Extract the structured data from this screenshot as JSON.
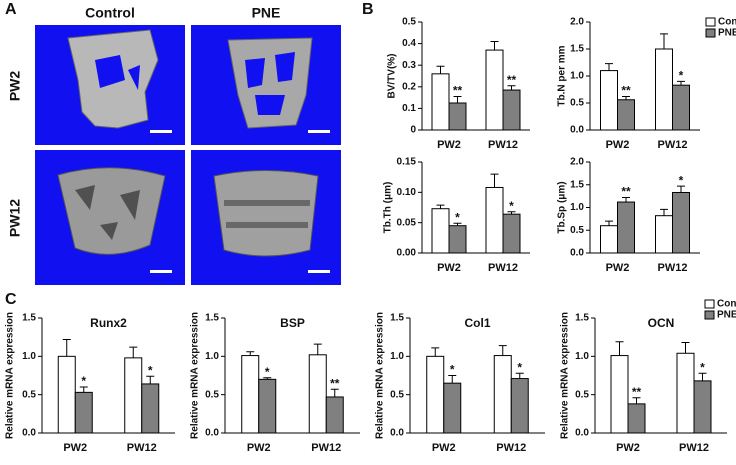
{
  "panel_labels": [
    "A",
    "B",
    "C"
  ],
  "panel_a": {
    "columns": [
      "Control",
      "PNE"
    ],
    "rows": [
      "PW2",
      "PW12"
    ]
  },
  "chart_data": [
    {
      "type": "bar",
      "ylabel": "BV/TV(%)",
      "categories": [
        "PW2",
        "PW12"
      ],
      "ylim": [
        0,
        0.5
      ],
      "yticks": [
        0,
        0.1,
        0.2,
        0.3,
        0.4,
        0.5
      ],
      "series": [
        {
          "color": "#ffffff",
          "values": [
            0.26,
            0.37
          ],
          "errors": [
            0.035,
            0.04
          ]
        },
        {
          "color": "#808080",
          "values": [
            0.125,
            0.185
          ],
          "errors": [
            0.03,
            0.02
          ],
          "stars": [
            "**",
            "**"
          ]
        }
      ]
    },
    {
      "type": "bar",
      "ylabel": "Tb.N per mm",
      "categories": [
        "PW2",
        "PW12"
      ],
      "ylim": [
        0,
        2.0
      ],
      "yticks": [
        {
          "value": 0,
          "label": "0.0"
        },
        0.5,
        {
          "value": 1.0,
          "label": "1.0"
        },
        1.5,
        {
          "value": 2.0,
          "label": "2.0"
        }
      ],
      "legend": "upper right",
      "series": [
        {
          "name": "Control",
          "color": "#ffffff",
          "values": [
            1.1,
            1.5
          ],
          "errors": [
            0.13,
            0.28
          ]
        },
        {
          "name": "PNE",
          "color": "#808080",
          "values": [
            0.56,
            0.83
          ],
          "errors": [
            0.06,
            0.07
          ],
          "stars": [
            "**",
            "*"
          ]
        }
      ]
    },
    {
      "type": "bar",
      "ylabel": "Tb.Th (μm)",
      "categories": [
        "PW2",
        "PW12"
      ],
      "ylim": [
        0,
        0.15
      ],
      "yticks": [
        {
          "value": 0,
          "label": "0.00"
        },
        0.05,
        {
          "value": 0.1,
          "label": "0.10"
        },
        0.15
      ],
      "series": [
        {
          "color": "#ffffff",
          "values": [
            0.073,
            0.108
          ],
          "errors": [
            0.006,
            0.022
          ]
        },
        {
          "color": "#808080",
          "values": [
            0.045,
            0.064
          ],
          "errors": [
            0.004,
            0.004
          ],
          "stars": [
            "*",
            "*"
          ]
        }
      ]
    },
    {
      "type": "bar",
      "ylabel": "Tb.Sp (μm)",
      "categories": [
        "PW2",
        "PW12"
      ],
      "ylim": [
        0,
        2.0
      ],
      "yticks": [
        {
          "value": 0,
          "label": "0.0"
        },
        0.5,
        {
          "value": 1.0,
          "label": "1.0"
        },
        1.5,
        {
          "value": 2.0,
          "label": "2.0"
        }
      ],
      "series": [
        {
          "color": "#ffffff",
          "values": [
            0.6,
            0.82
          ],
          "errors": [
            0.1,
            0.14
          ]
        },
        {
          "color": "#808080",
          "values": [
            1.12,
            1.33
          ],
          "errors": [
            0.1,
            0.14
          ],
          "stars": [
            "**",
            "*"
          ]
        }
      ]
    },
    {
      "type": "bar",
      "title": "Runx2",
      "ylabel": "Relative mRNA expression",
      "categories": [
        "PW2",
        "PW12"
      ],
      "ylim": [
        0,
        1.5
      ],
      "yticks": [
        {
          "value": 0,
          "label": "0.0"
        },
        0.5,
        {
          "value": 1.0,
          "label": "1.0"
        },
        1.5
      ],
      "series": [
        {
          "color": "#ffffff",
          "values": [
            1.0,
            0.98
          ],
          "errors": [
            0.22,
            0.14
          ]
        },
        {
          "color": "#808080",
          "values": [
            0.53,
            0.64
          ],
          "errors": [
            0.07,
            0.1
          ],
          "stars": [
            "*",
            "*"
          ]
        }
      ]
    },
    {
      "type": "bar",
      "title": "BSP",
      "ylabel": "Relative mRNA expression",
      "categories": [
        "PW2",
        "PW12"
      ],
      "ylim": [
        0,
        1.5
      ],
      "yticks": [
        {
          "value": 0,
          "label": "0.0"
        },
        0.5,
        {
          "value": 1.0,
          "label": "1.0"
        },
        1.5
      ],
      "series": [
        {
          "color": "#ffffff",
          "values": [
            1.01,
            1.02
          ],
          "errors": [
            0.05,
            0.14
          ]
        },
        {
          "color": "#808080",
          "values": [
            0.7,
            0.47
          ],
          "errors": [
            0.02,
            0.1
          ],
          "stars": [
            "*",
            "**"
          ]
        }
      ]
    },
    {
      "type": "bar",
      "title": "Col1",
      "ylabel": "Relative mRNA expression",
      "categories": [
        "PW2",
        "PW12"
      ],
      "ylim": [
        0,
        1.5
      ],
      "yticks": [
        {
          "value": 0,
          "label": "0.0"
        },
        0.5,
        {
          "value": 1.0,
          "label": "1.0"
        },
        1.5
      ],
      "series": [
        {
          "color": "#ffffff",
          "values": [
            1.0,
            1.01
          ],
          "errors": [
            0.11,
            0.13
          ]
        },
        {
          "color": "#808080",
          "values": [
            0.65,
            0.71
          ],
          "errors": [
            0.1,
            0.07
          ],
          "stars": [
            "*",
            "*"
          ]
        }
      ]
    },
    {
      "type": "bar",
      "title": "OCN",
      "ylabel": "Relative mRNA expression",
      "categories": [
        "PW2",
        "PW12"
      ],
      "ylim": [
        0,
        1.5
      ],
      "yticks": [
        {
          "value": 0,
          "label": "0.0"
        },
        0.5,
        {
          "value": 1.0,
          "label": "1.0"
        },
        1.5
      ],
      "legend": "upper right",
      "series": [
        {
          "name": "Control",
          "color": "#ffffff",
          "values": [
            1.01,
            1.04
          ],
          "errors": [
            0.18,
            0.14
          ]
        },
        {
          "name": "PNE",
          "color": "#808080",
          "values": [
            0.38,
            0.68
          ],
          "errors": [
            0.08,
            0.1
          ],
          "stars": [
            "**",
            "*"
          ]
        }
      ]
    }
  ]
}
